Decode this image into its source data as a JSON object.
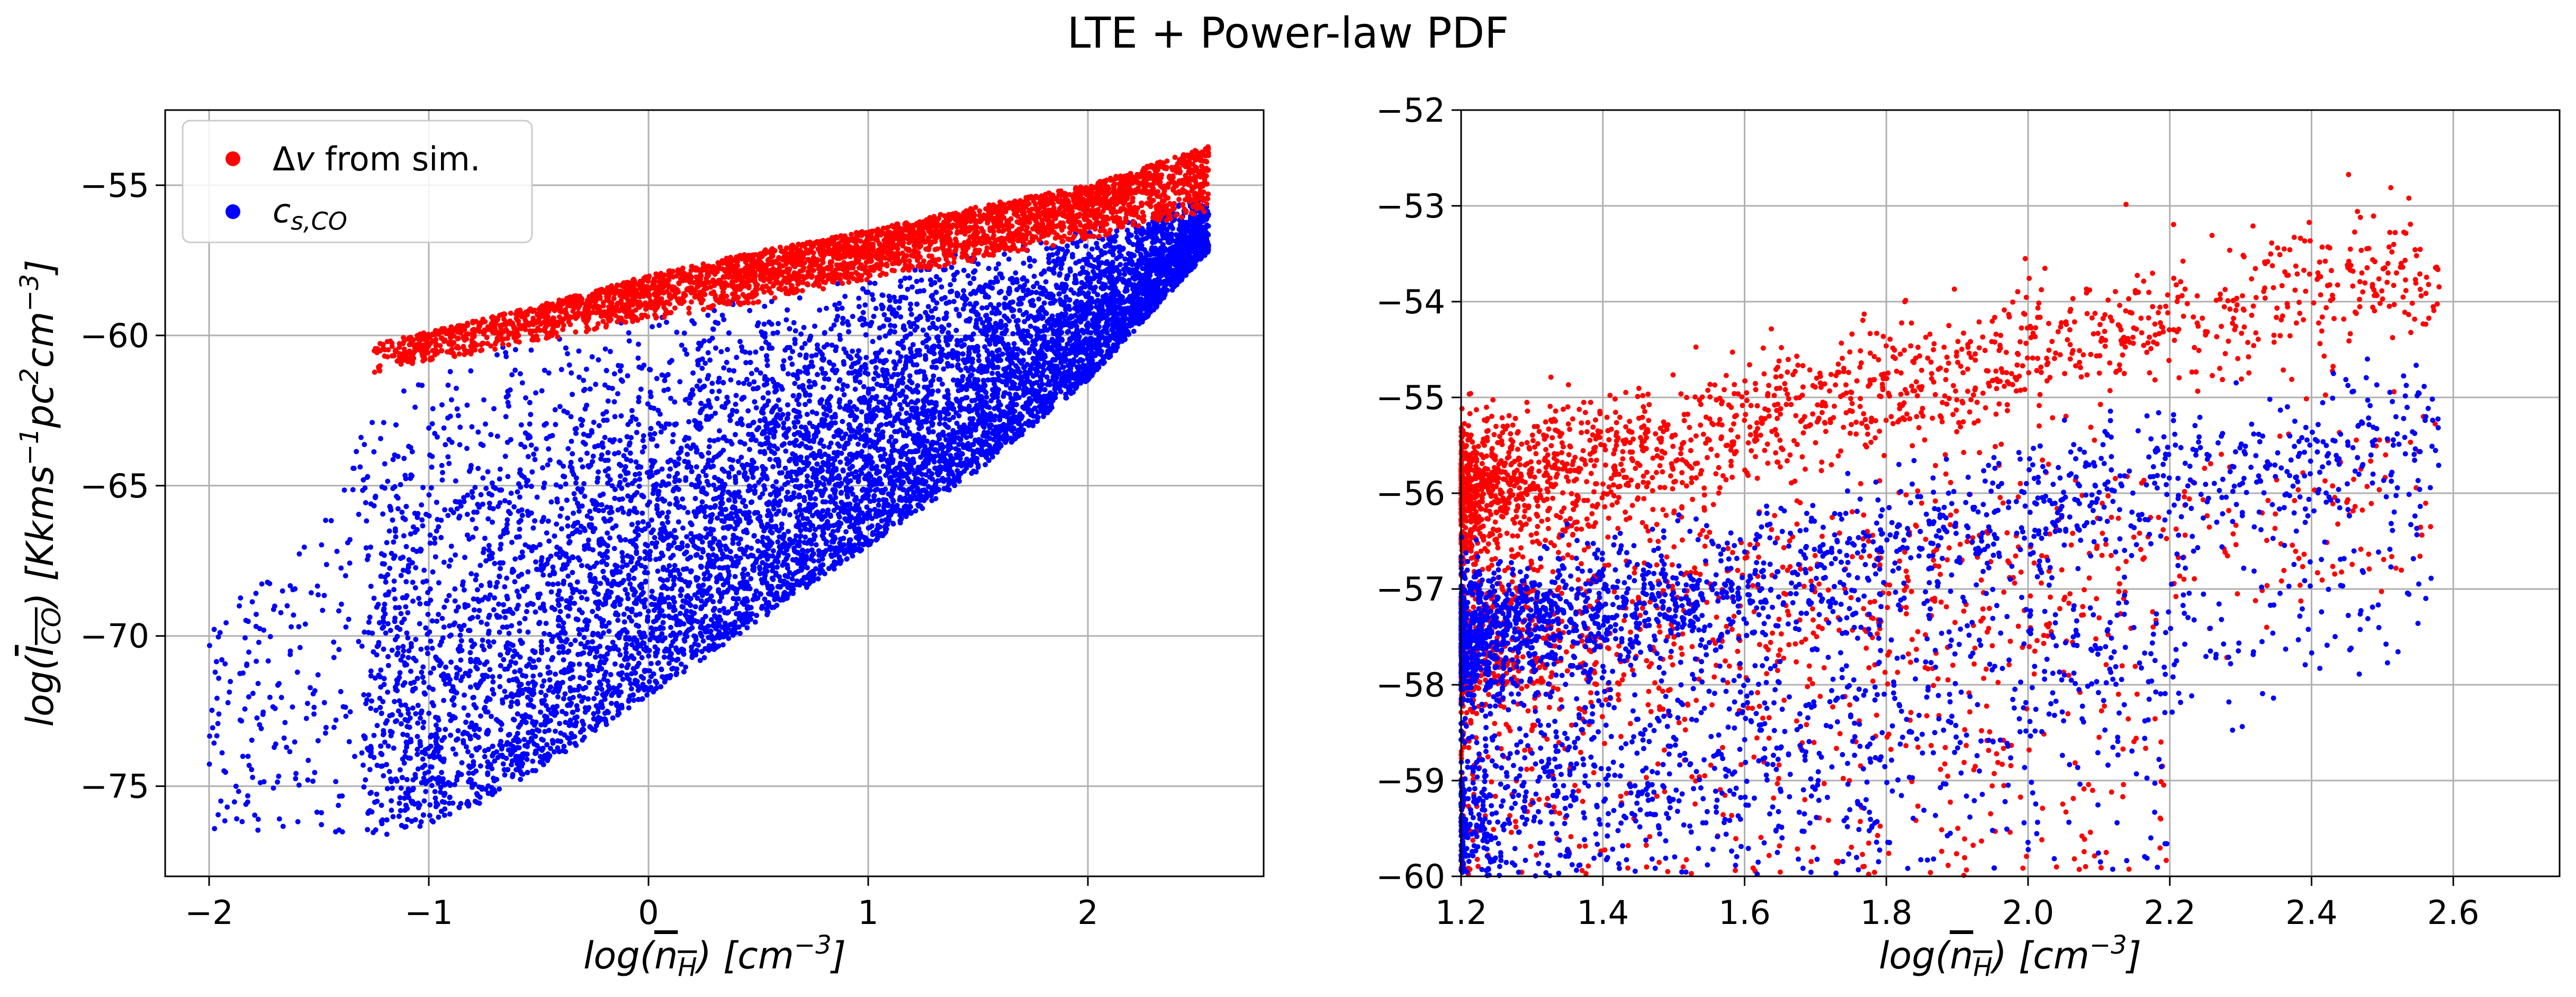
{
  "figure": {
    "title": "LTE + Power-law PDF"
  },
  "chart_data": [
    {
      "type": "scatter",
      "panel": "left",
      "xlabel": "log(n̄_H) [cm⁻³]",
      "ylabel": "log(Ī_CO) [Kkms⁻¹pc²cm⁻³]",
      "xlim": [
        -2.2,
        2.8
      ],
      "ylim": [
        -78,
        -52.5
      ],
      "xticks": [
        -2,
        -1,
        0,
        1,
        2
      ],
      "xtick_labels": [
        "−2",
        "−1",
        "0",
        "1",
        "2"
      ],
      "yticks": [
        -75,
        -70,
        -65,
        -60,
        -55
      ],
      "ytick_labels": [
        "−75",
        "−70",
        "−65",
        "−60",
        "−55"
      ],
      "grid": true,
      "legend": {
        "placement": "upper-left",
        "entries": [
          {
            "label": "Δv from sim.",
            "color": "#ff0000"
          },
          {
            "label": "c_s,CO",
            "color": "#0000ff"
          }
        ]
      },
      "series": [
        {
          "name": "Δv from sim.",
          "color": "#ff0000",
          "trend_x": [
            -1.25,
            -0.5,
            0.0,
            0.5,
            1.0,
            1.5,
            2.0,
            2.55
          ],
          "trend_y_upper": [
            -60.3,
            -59.0,
            -58.0,
            -57.2,
            -56.5,
            -55.7,
            -55.0,
            -53.7
          ],
          "trend_y_lower": [
            -61.3,
            -60.2,
            -59.5,
            -58.9,
            -58.2,
            -57.5,
            -56.8,
            -55.9
          ]
        },
        {
          "name": "c_s,CO",
          "color": "#0000ff",
          "trend_x": [
            -1.9,
            -1.5,
            -1.2,
            -0.8,
            -0.4,
            0.0,
            0.5,
            1.0,
            1.5,
            2.0,
            2.55
          ],
          "trend_y_upper": [
            -69.0,
            -66.5,
            -61.5,
            -60.2,
            -59.5,
            -59.0,
            -58.5,
            -57.8,
            -57.0,
            -56.3,
            -55.3
          ],
          "trend_y_lower": [
            -76.5,
            -76.5,
            -76.7,
            -75.8,
            -74.0,
            -72.0,
            -69.5,
            -67.0,
            -64.5,
            -61.5,
            -57.2
          ]
        }
      ]
    },
    {
      "type": "scatter",
      "panel": "right",
      "xlabel": "log(n̄_H) [cm⁻³]",
      "ylabel": "",
      "xlim": [
        1.2,
        2.75
      ],
      "ylim": [
        -60,
        -52
      ],
      "xticks": [
        1.2,
        1.4,
        1.6,
        1.8,
        2.0,
        2.2,
        2.4,
        2.6
      ],
      "xtick_labels": [
        "1.2",
        "1.4",
        "1.6",
        "1.8",
        "2.0",
        "2.2",
        "2.4",
        "2.6"
      ],
      "yticks": [
        -60,
        -59,
        -58,
        -57,
        -56,
        -55,
        -54,
        -53,
        -52
      ],
      "ytick_labels": [
        "−60",
        "−59",
        "−58",
        "−57",
        "−56",
        "−55",
        "−54",
        "−53",
        "−52"
      ],
      "grid": true,
      "series": [
        {
          "name": "Δv from sim.",
          "color": "#ff0000",
          "upper_branch": {
            "x": [
              1.2,
              1.5,
              1.8,
              2.1,
              2.3,
              2.57
            ],
            "y": [
              -56.0,
              -55.5,
              -54.9,
              -54.4,
              -54.0,
              -53.7
            ]
          },
          "lower_branch": {
            "x": [
              1.2,
              1.5,
              1.8,
              2.1,
              2.4,
              2.55
            ],
            "y": [
              -57.5,
              -57.1,
              -56.9,
              -56.7,
              -56.3,
              -55.9
            ]
          }
        },
        {
          "name": "c_s,CO",
          "color": "#0000ff",
          "upper_branch": {
            "x": [
              1.2,
              1.5,
              1.8,
              2.1,
              2.4,
              2.57
            ],
            "y": [
              -57.5,
              -57.1,
              -56.6,
              -56.0,
              -55.7,
              -55.3
            ]
          },
          "lower_branch": {
            "x": [
              1.2,
              1.5,
              1.8,
              2.1,
              2.4,
              2.55
            ],
            "y": [
              -59.5,
              -59.0,
              -58.4,
              -57.7,
              -57.1,
              -56.7
            ]
          }
        }
      ]
    }
  ]
}
